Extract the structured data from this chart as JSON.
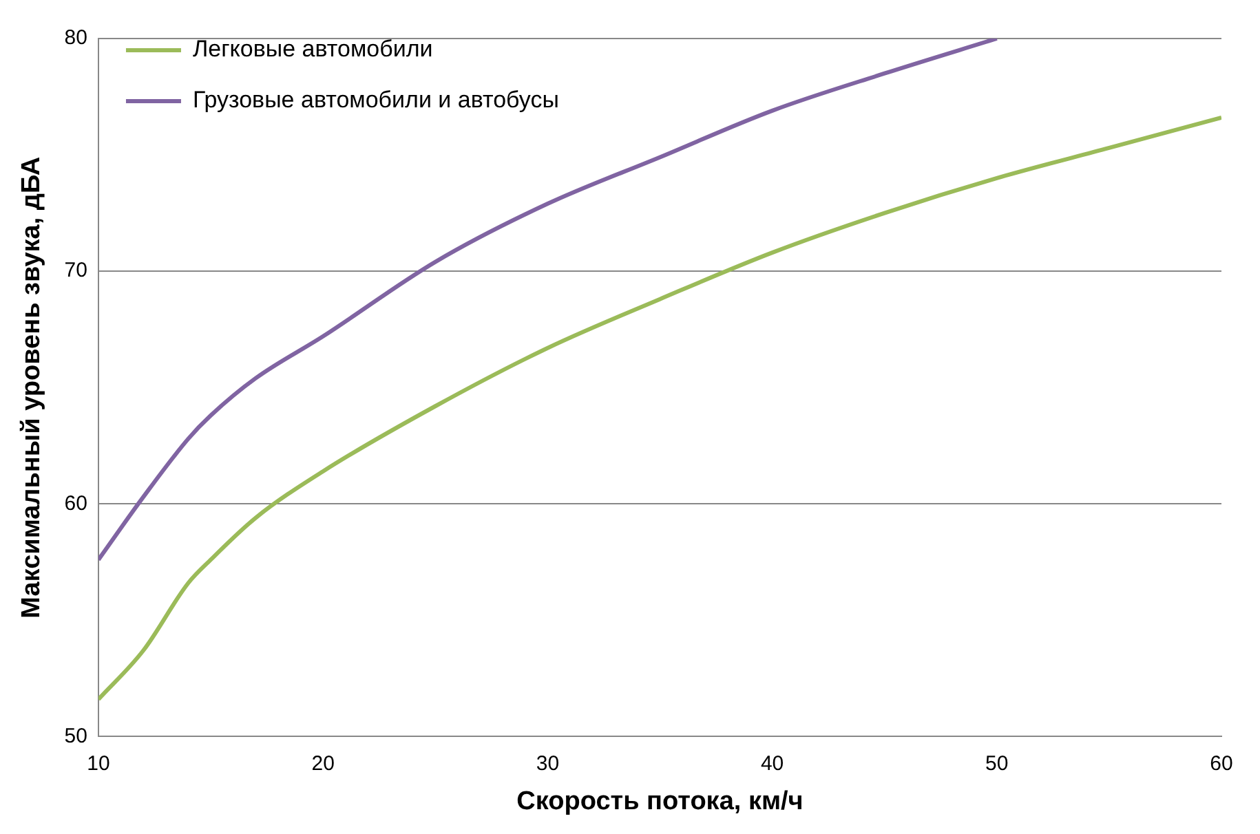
{
  "chart_data": {
    "type": "line",
    "xlabel": "Скорость потока, км/ч",
    "ylabel": "Максимальный уровень звука, дБА",
    "xlim": [
      10,
      60
    ],
    "xticks": [
      10,
      20,
      30,
      40,
      50,
      60
    ],
    "ylim": [
      50,
      80
    ],
    "yticks": [
      50,
      60,
      70,
      80
    ],
    "grid": "y",
    "legend": "top left",
    "marker": "none",
    "line_style": "solid",
    "series": [
      {
        "name": "Легковые автомобили",
        "color": "#9bbb59",
        "x": [
          10,
          12,
          14,
          15,
          17,
          20,
          25,
          30,
          35,
          40,
          45,
          50,
          55,
          60
        ],
        "values": [
          51.6,
          53.7,
          56.6,
          57.6,
          59.4,
          61.4,
          64.2,
          66.7,
          68.8,
          70.8,
          72.5,
          74.0,
          75.3,
          76.6
        ]
      },
      {
        "name": "Грузовые автомобили и автобусы",
        "color": "#8064a2",
        "x": [
          10,
          12,
          14,
          15,
          17,
          20,
          25,
          30,
          35,
          40,
          45,
          50
        ],
        "values": [
          57.6,
          60.3,
          62.8,
          63.8,
          65.4,
          67.2,
          70.4,
          72.9,
          74.9,
          76.9,
          78.5,
          80
        ]
      }
    ]
  }
}
